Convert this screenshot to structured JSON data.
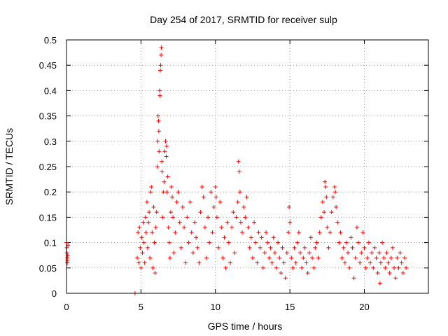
{
  "chart_data": {
    "type": "scatter",
    "title": "Day 254 of 2017, SRMTID for receiver sulp",
    "xlabel": "GPS time / hours",
    "ylabel": "SRMTID / TECUs",
    "xlim": [
      0,
      24.3
    ],
    "ylim": [
      0,
      0.5
    ],
    "xticks": [
      0,
      5,
      10,
      15,
      20
    ],
    "xtick_labels": [
      "0",
      "5",
      "10",
      "15",
      "20"
    ],
    "yticks": [
      0,
      0.05,
      0.1,
      0.15,
      0.2,
      0.25,
      0.3,
      0.35,
      0.4,
      0.45,
      0.5
    ],
    "ytick_labels": [
      "0",
      "0.05",
      "0.1",
      "0.15",
      "0.2",
      "0.25",
      "0.3",
      "0.35",
      "0.4",
      "0.45",
      "0.5"
    ],
    "grid": true,
    "series": [
      {
        "name": "SRMTID",
        "marker": "+",
        "color": "#ff0000",
        "points": [
          [
            0.0,
            0.1
          ],
          [
            0.02,
            0.09
          ],
          [
            0.03,
            0.08
          ],
          [
            0.04,
            0.07
          ],
          [
            0.05,
            0.06
          ],
          [
            0.06,
            0.065
          ],
          [
            0.08,
            0.075
          ],
          [
            0.1,
            0.095
          ],
          [
            4.6,
            0.0
          ],
          [
            4.75,
            0.07
          ],
          [
            4.8,
            0.12
          ],
          [
            4.85,
            0.06
          ],
          [
            4.9,
            0.13
          ],
          [
            4.95,
            0.09
          ],
          [
            5.0,
            0.05
          ],
          [
            5.05,
            0.11
          ],
          [
            5.1,
            0.08
          ],
          [
            5.15,
            0.14
          ],
          [
            5.2,
            0.1
          ],
          [
            5.25,
            0.06
          ],
          [
            5.3,
            0.15
          ],
          [
            5.35,
            0.12
          ],
          [
            5.4,
            0.18
          ],
          [
            5.45,
            0.09
          ],
          [
            5.5,
            0.14
          ],
          [
            5.55,
            0.16
          ],
          [
            5.6,
            0.07
          ],
          [
            5.65,
            0.2
          ],
          [
            5.7,
            0.21
          ],
          [
            5.75,
            0.12
          ],
          [
            5.8,
            0.05
          ],
          [
            5.85,
            0.17
          ],
          [
            5.9,
            0.1
          ],
          [
            5.95,
            0.04
          ],
          [
            6.0,
            0.13
          ],
          [
            6.05,
            0.16
          ],
          [
            6.1,
            0.25
          ],
          [
            6.12,
            0.3
          ],
          [
            6.15,
            0.35
          ],
          [
            6.18,
            0.34
          ],
          [
            6.2,
            0.32
          ],
          [
            6.22,
            0.28
          ],
          [
            6.25,
            0.4
          ],
          [
            6.27,
            0.39
          ],
          [
            6.3,
            0.44
          ],
          [
            6.32,
            0.45
          ],
          [
            6.35,
            0.47
          ],
          [
            6.37,
            0.485
          ],
          [
            6.4,
            0.26
          ],
          [
            6.42,
            0.24
          ],
          [
            6.45,
            0.15
          ],
          [
            6.5,
            0.2
          ],
          [
            6.55,
            0.22
          ],
          [
            6.6,
            0.28
          ],
          [
            6.65,
            0.3
          ],
          [
            6.7,
            0.27
          ],
          [
            6.72,
            0.29
          ],
          [
            6.75,
            0.2
          ],
          [
            6.8,
            0.23
          ],
          [
            6.85,
            0.13
          ],
          [
            6.9,
            0.1
          ],
          [
            6.95,
            0.07
          ],
          [
            7.0,
            0.16
          ],
          [
            7.05,
            0.21
          ],
          [
            7.1,
            0.19
          ],
          [
            7.15,
            0.15
          ],
          [
            7.2,
            0.08
          ],
          [
            7.3,
            0.12
          ],
          [
            7.4,
            0.18
          ],
          [
            7.5,
            0.2
          ],
          [
            7.6,
            0.14
          ],
          [
            7.7,
            0.09
          ],
          [
            7.8,
            0.17
          ],
          [
            7.9,
            0.13
          ],
          [
            8.0,
            0.06
          ],
          [
            8.1,
            0.15
          ],
          [
            8.2,
            0.1
          ],
          [
            8.3,
            0.18
          ],
          [
            8.4,
            0.12
          ],
          [
            8.5,
            0.08
          ],
          [
            8.6,
            0.14
          ],
          [
            8.7,
            0.11
          ],
          [
            8.8,
            0.09
          ],
          [
            8.9,
            0.06
          ],
          [
            9.0,
            0.16
          ],
          [
            9.1,
            0.21
          ],
          [
            9.2,
            0.19
          ],
          [
            9.3,
            0.13
          ],
          [
            9.4,
            0.07
          ],
          [
            9.5,
            0.15
          ],
          [
            9.6,
            0.1
          ],
          [
            9.7,
            0.2
          ],
          [
            9.8,
            0.12
          ],
          [
            9.9,
            0.17
          ],
          [
            10.0,
            0.21
          ],
          [
            10.05,
            0.19
          ],
          [
            10.1,
            0.15
          ],
          [
            10.2,
            0.09
          ],
          [
            10.3,
            0.18
          ],
          [
            10.4,
            0.13
          ],
          [
            10.5,
            0.07
          ],
          [
            10.6,
            0.11
          ],
          [
            10.7,
            0.05
          ],
          [
            10.8,
            0.14
          ],
          [
            10.9,
            0.1
          ],
          [
            11.0,
            0.06
          ],
          [
            11.1,
            0.13
          ],
          [
            11.2,
            0.16
          ],
          [
            11.3,
            0.08
          ],
          [
            11.4,
            0.15
          ],
          [
            11.5,
            0.18
          ],
          [
            11.55,
            0.26
          ],
          [
            11.6,
            0.24
          ],
          [
            11.65,
            0.2
          ],
          [
            11.7,
            0.14
          ],
          [
            11.8,
            0.12
          ],
          [
            11.9,
            0.17
          ],
          [
            12.0,
            0.15
          ],
          [
            12.1,
            0.19
          ],
          [
            12.2,
            0.13
          ],
          [
            12.3,
            0.09
          ],
          [
            12.4,
            0.11
          ],
          [
            12.5,
            0.07
          ],
          [
            12.6,
            0.14
          ],
          [
            12.7,
            0.1
          ],
          [
            12.8,
            0.06
          ],
          [
            12.9,
            0.12
          ],
          [
            13.0,
            0.09
          ],
          [
            13.1,
            0.11
          ],
          [
            13.2,
            0.05
          ],
          [
            13.3,
            0.08
          ],
          [
            13.4,
            0.12
          ],
          [
            13.5,
            0.1
          ],
          [
            13.6,
            0.07
          ],
          [
            13.7,
            0.09
          ],
          [
            13.8,
            0.06
          ],
          [
            13.9,
            0.11
          ],
          [
            14.0,
            0.08
          ],
          [
            14.1,
            0.05
          ],
          [
            14.2,
            0.1
          ],
          [
            14.3,
            0.07
          ],
          [
            14.4,
            0.04
          ],
          [
            14.5,
            0.09
          ],
          [
            14.6,
            0.06
          ],
          [
            14.7,
            0.03
          ],
          [
            14.8,
            0.08
          ],
          [
            14.9,
            0.12
          ],
          [
            14.95,
            0.17
          ],
          [
            15.0,
            0.14
          ],
          [
            15.1,
            0.07
          ],
          [
            15.2,
            0.05
          ],
          [
            15.3,
            0.09
          ],
          [
            15.4,
            0.06
          ],
          [
            15.5,
            0.1
          ],
          [
            15.6,
            0.12
          ],
          [
            15.7,
            0.08
          ],
          [
            15.8,
            0.05
          ],
          [
            15.9,
            0.07
          ],
          [
            16.0,
            0.09
          ],
          [
            16.1,
            0.06
          ],
          [
            16.2,
            0.04
          ],
          [
            16.3,
            0.08
          ],
          [
            16.4,
            0.11
          ],
          [
            16.5,
            0.07
          ],
          [
            16.6,
            0.05
          ],
          [
            16.7,
            0.09
          ],
          [
            16.8,
            0.1
          ],
          [
            16.9,
            0.07
          ],
          [
            17.0,
            0.12
          ],
          [
            17.1,
            0.15
          ],
          [
            17.2,
            0.18
          ],
          [
            17.3,
            0.16
          ],
          [
            17.35,
            0.22
          ],
          [
            17.4,
            0.21
          ],
          [
            17.45,
            0.19
          ],
          [
            17.5,
            0.13
          ],
          [
            17.6,
            0.09
          ],
          [
            17.7,
            0.12
          ],
          [
            17.8,
            0.16
          ],
          [
            17.9,
            0.19
          ],
          [
            18.0,
            0.21
          ],
          [
            18.05,
            0.2
          ],
          [
            18.1,
            0.17
          ],
          [
            18.2,
            0.14
          ],
          [
            18.3,
            0.1
          ],
          [
            18.4,
            0.12
          ],
          [
            18.5,
            0.07
          ],
          [
            18.6,
            0.09
          ],
          [
            18.7,
            0.06
          ],
          [
            18.8,
            0.1
          ],
          [
            18.9,
            0.08
          ],
          [
            19.0,
            0.05
          ],
          [
            19.1,
            0.11
          ],
          [
            19.2,
            0.09
          ],
          [
            19.3,
            0.03
          ],
          [
            19.4,
            0.07
          ],
          [
            19.5,
            0.13
          ],
          [
            19.6,
            0.1
          ],
          [
            19.7,
            0.06
          ],
          [
            19.8,
            0.08
          ],
          [
            19.9,
            0.12
          ],
          [
            20.0,
            0.09
          ],
          [
            20.1,
            0.05
          ],
          [
            20.2,
            0.07
          ],
          [
            20.3,
            0.1
          ],
          [
            20.4,
            0.06
          ],
          [
            20.5,
            0.08
          ],
          [
            20.6,
            0.05
          ],
          [
            20.7,
            0.09
          ],
          [
            20.8,
            0.07
          ],
          [
            20.9,
            0.04
          ],
          [
            21.0,
            0.08
          ],
          [
            21.05,
            0.02
          ],
          [
            21.1,
            0.06
          ],
          [
            21.2,
            0.1
          ],
          [
            21.3,
            0.07
          ],
          [
            21.4,
            0.05
          ],
          [
            21.5,
            0.08
          ],
          [
            21.6,
            0.06
          ],
          [
            21.7,
            0.04
          ],
          [
            21.8,
            0.07
          ],
          [
            21.9,
            0.09
          ],
          [
            22.0,
            0.05
          ],
          [
            22.1,
            0.03
          ],
          [
            22.2,
            0.07
          ],
          [
            22.3,
            0.05
          ],
          [
            22.4,
            0.08
          ],
          [
            22.5,
            0.06
          ],
          [
            22.6,
            0.04
          ],
          [
            22.7,
            0.07
          ],
          [
            22.8,
            0.05
          ]
        ]
      }
    ]
  }
}
